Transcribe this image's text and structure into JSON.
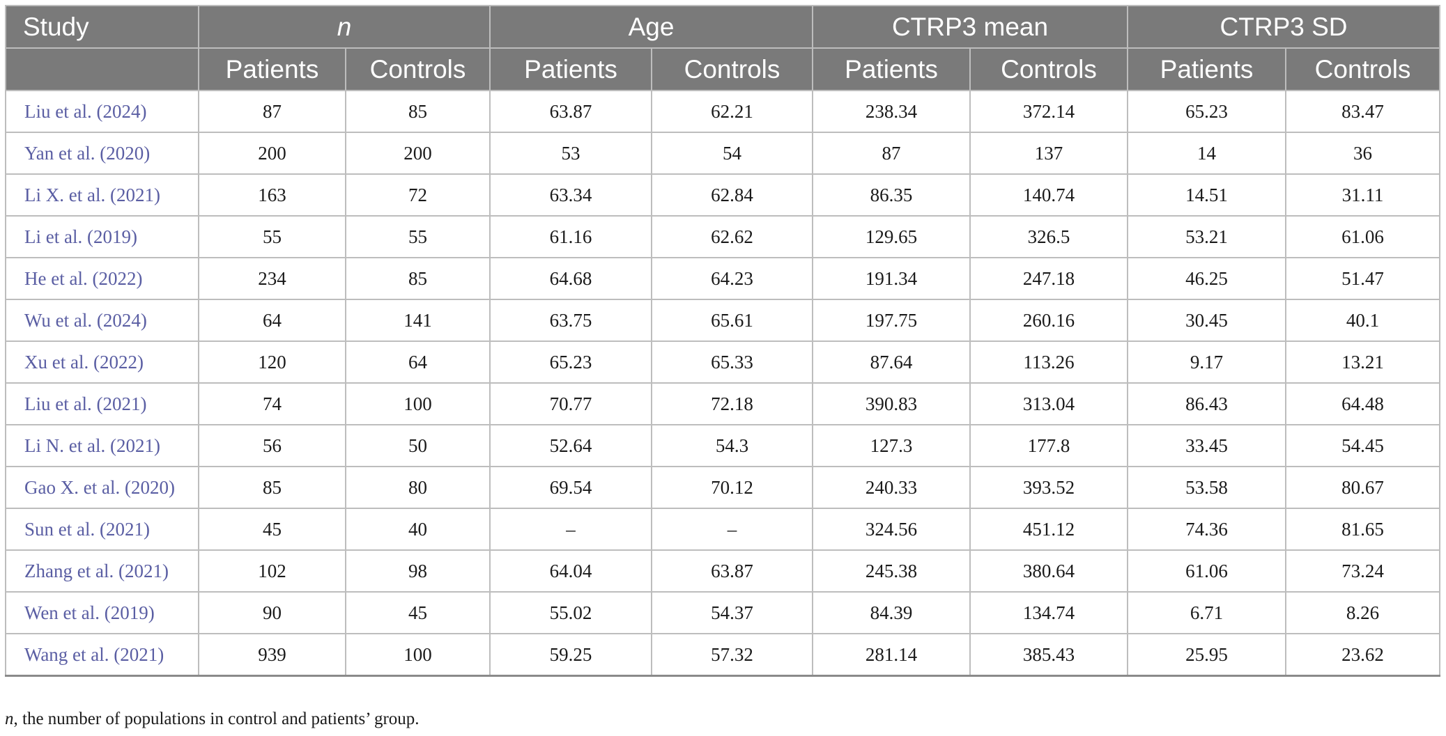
{
  "table": {
    "header_top": {
      "study": "Study",
      "n": "n",
      "age": "Age",
      "ctrp3_mean": "CTRP3 mean",
      "ctrp3_sd": "CTRP3 SD"
    },
    "header_sub": [
      "Patients",
      "Controls",
      "Patients",
      "Controls",
      "Patients",
      "Controls",
      "Patients",
      "Controls"
    ],
    "rows": [
      {
        "study": "Liu et al. (",
        "year": "2024",
        "close": ")",
        "values": [
          "87",
          "85",
          "63.87",
          "62.21",
          "238.34",
          "372.14",
          "65.23",
          "83.47"
        ]
      },
      {
        "study": "Yan et al. (",
        "year": "2020",
        "close": ")",
        "values": [
          "200",
          "200",
          "53",
          "54",
          "87",
          "137",
          "14",
          "36"
        ]
      },
      {
        "study": "Li X. et al. (",
        "year": "2021",
        "close": ")",
        "values": [
          "163",
          "72",
          "63.34",
          "62.84",
          "86.35",
          "140.74",
          "14.51",
          "31.11"
        ]
      },
      {
        "study": "Li et al. (",
        "year": "2019",
        "close": ")",
        "values": [
          "55",
          "55",
          "61.16",
          "62.62",
          "129.65",
          "326.5",
          "53.21",
          "61.06"
        ]
      },
      {
        "study": "He et al. (",
        "year": "2022",
        "close": ")",
        "values": [
          "234",
          "85",
          "64.68",
          "64.23",
          "191.34",
          "247.18",
          "46.25",
          "51.47"
        ]
      },
      {
        "study": "Wu et al. (",
        "year": "2024",
        "close": ")",
        "values": [
          "64",
          "141",
          "63.75",
          "65.61",
          "197.75",
          "260.16",
          "30.45",
          "40.1"
        ]
      },
      {
        "study": "Xu et al. (",
        "year": "2022",
        "close": ")",
        "values": [
          "120",
          "64",
          "65.23",
          "65.33",
          "87.64",
          "113.26",
          "9.17",
          "13.21"
        ]
      },
      {
        "study": "Liu et al. (",
        "year": "2021",
        "close": ")",
        "values": [
          "74",
          "100",
          "70.77",
          "72.18",
          "390.83",
          "313.04",
          "86.43",
          "64.48"
        ]
      },
      {
        "study": "Li N. et al. (",
        "year": "2021",
        "close": ")",
        "values": [
          "56",
          "50",
          "52.64",
          "54.3",
          "127.3",
          "177.8",
          "33.45",
          "54.45"
        ]
      },
      {
        "study": "Gao X. et al. (",
        "year": "2020",
        "close": ")",
        "values": [
          "85",
          "80",
          "69.54",
          "70.12",
          "240.33",
          "393.52",
          "53.58",
          "80.67"
        ]
      },
      {
        "study": "Sun et al. (",
        "year": "2021",
        "close": ")",
        "values": [
          "45",
          "40",
          "–",
          "–",
          "324.56",
          "451.12",
          "74.36",
          "81.65"
        ]
      },
      {
        "study": "Zhang et al. (",
        "year": "2021",
        "close": ")",
        "values": [
          "102",
          "98",
          "64.04",
          "63.87",
          "245.38",
          "380.64",
          "61.06",
          "73.24"
        ]
      },
      {
        "study": "Wen et al. (",
        "year": "2019",
        "close": ")",
        "values": [
          "90",
          "45",
          "55.02",
          "54.37",
          "84.39",
          "134.74",
          "6.71",
          "8.26"
        ]
      },
      {
        "study": "Wang et al. (",
        "year": "2021",
        "close": ")",
        "values": [
          "939",
          "100",
          "59.25",
          "57.32",
          "281.14",
          "385.43",
          "25.95",
          "23.62"
        ]
      }
    ]
  },
  "caption": {
    "italic": "n",
    "text": ", the number of populations in control and patients’ group."
  },
  "colors": {
    "header_bg": "#7a7a7a",
    "header_text": "#ffffff",
    "study_link": "#5a5ea3",
    "grid": "#bdbdbd"
  }
}
